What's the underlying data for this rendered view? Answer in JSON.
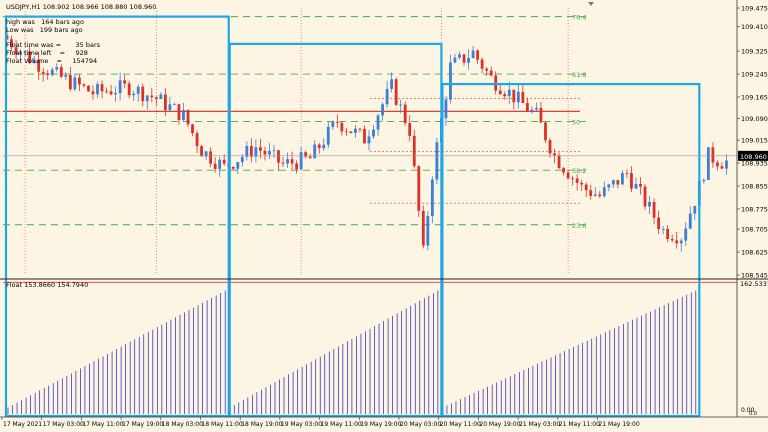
{
  "window": {
    "title": "USDJPY,H1 108.902 108.966 108.880 108.960"
  },
  "info": {
    "high_line": "high was   164 bars ago",
    "low_line": "Low was   199 bars ago",
    "float_time": "Float time was =       35 bars",
    "float_left": "Float time left    =     928",
    "float_volume": "Float Volume    =     154794"
  },
  "indicator": {
    "label": "Float 153.8660 154.7940",
    "top_value": "162.5337",
    "bottom_value": "0.00",
    "bottom_value2": "0.0"
  },
  "price_axis": {
    "labels": [
      "109.475",
      "109.410",
      "109.325",
      "109.245",
      "109.165",
      "109.090",
      "109.015",
      "108.935",
      "108.855",
      "108.775",
      "108.705",
      "108.625",
      "108.545"
    ],
    "current_price": "108.960"
  },
  "fib_labels": [
    "76.4",
    "61.8",
    "50",
    "38.2",
    "23.6"
  ],
  "time_axis": {
    "labels": [
      "17 May 2021",
      "17 May 03:00",
      "17 May 11:00",
      "17 May 19:00",
      "18 May 03:00",
      "18 May 11:00",
      "18 May 19:00",
      "19 May 03:00",
      "19 May 11:00",
      "19 May 19:00",
      "20 May 03:00",
      "20 May 11:00",
      "20 May 19:00",
      "21 May 03:00",
      "21 May 11:00",
      "21 May 19:00"
    ]
  },
  "colors": {
    "background": "#fdf5e4",
    "bull": "#3b7fd6",
    "bear": "#d9322b",
    "box": "#1ea7e6",
    "fib": "#44aa44",
    "red_line": "#e04030",
    "indicator_bars": "#2020c0"
  },
  "chart_data": {
    "type": "candlestick",
    "symbol": "USDJPY",
    "timeframe": "H1",
    "ylim": [
      108.545,
      109.475
    ],
    "current_price": 108.96,
    "boxes": [
      {
        "start_index": 0,
        "end_index": 49,
        "high": 109.445
      },
      {
        "start_index": 49,
        "end_index": 96,
        "high": 109.35
      },
      {
        "start_index": 96,
        "end_index": 153,
        "high": 109.21
      }
    ],
    "fib_levels": [
      {
        "label": "76.4",
        "price": 109.445
      },
      {
        "label": "61.8",
        "price": 109.245
      },
      {
        "label": "50",
        "price": 109.08
      },
      {
        "label": "38.2",
        "price": 108.91
      },
      {
        "label": "23.6",
        "price": 108.72
      }
    ],
    "red_level": 109.115,
    "indicator": {
      "ylim": [
        0,
        162.5337
      ],
      "red_level": 154.794
    }
  }
}
